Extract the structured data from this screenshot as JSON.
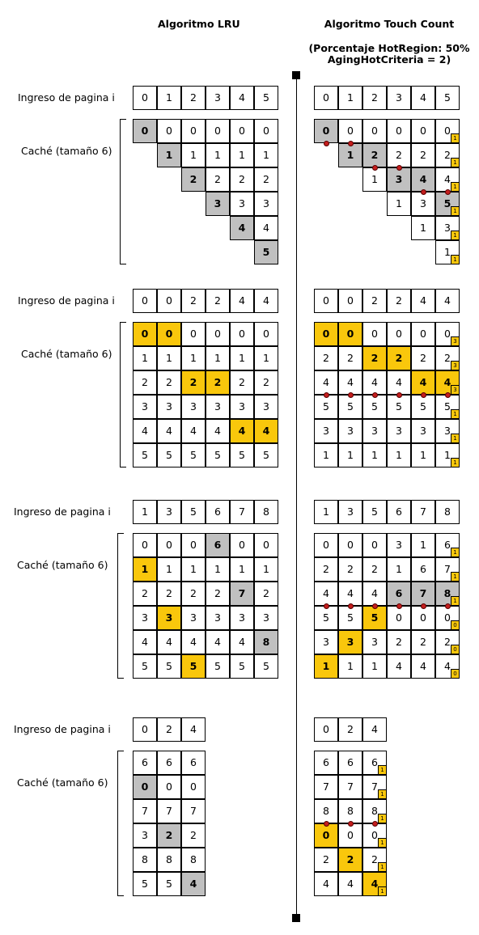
{
  "titles": {
    "lru": "Algoritmo LRU",
    "tc": "Algoritmo Touch Count",
    "tc_sub1": "(Porcentaje HotRegion: 50%",
    "tc_sub2": "AgingHotCriteria = 2)"
  },
  "labels": {
    "ingreso": "Ingreso de pagina i",
    "cache": "Caché (tamaño 6)"
  },
  "colors": {
    "accent": "#f9c70c",
    "hit": "#c0c0c0",
    "marker": "#c41e1e"
  },
  "sections": [
    {
      "input": [
        "0",
        "1",
        "2",
        "3",
        "4",
        "5"
      ],
      "lru": [
        [
          "0g",
          "0",
          "0",
          "0",
          "0",
          "0"
        ],
        [
          "",
          "1g",
          "1",
          "1",
          "1",
          "1"
        ],
        [
          "",
          "",
          "2g",
          "2",
          "2",
          "2"
        ],
        [
          "",
          "",
          "",
          "3g",
          "3",
          "3"
        ],
        [
          "",
          "",
          "",
          "",
          "4g",
          "4"
        ],
        [
          "",
          "",
          "",
          "",
          "",
          "5g"
        ]
      ],
      "tc": [
        [
          "0g",
          "0",
          "0",
          "0",
          "0",
          "0|1"
        ],
        [
          "",
          "1g",
          "2g",
          "2",
          "2",
          "2|1"
        ],
        [
          "",
          "",
          "1",
          "3g",
          "4g",
          "4|1"
        ],
        [
          "",
          "",
          "",
          "1",
          "3",
          "5g|1"
        ],
        [
          "",
          "",
          "",
          "",
          "1",
          "3|1"
        ],
        [
          "",
          "",
          "",
          "",
          "",
          "1|1"
        ]
      ],
      "dots": [
        [
          0,
          0
        ],
        [
          0,
          1
        ],
        [
          1,
          2
        ],
        [
          1,
          3
        ],
        [
          2,
          4
        ],
        [
          2,
          5
        ]
      ]
    },
    {
      "input": [
        "0",
        "0",
        "2",
        "2",
        "4",
        "4"
      ],
      "lru": [
        [
          "0y",
          "0y",
          "0",
          "0",
          "0",
          "0"
        ],
        [
          "1",
          "1",
          "1",
          "1",
          "1",
          "1"
        ],
        [
          "2",
          "2",
          "2y",
          "2y",
          "2",
          "2"
        ],
        [
          "3",
          "3",
          "3",
          "3",
          "3",
          "3"
        ],
        [
          "4",
          "4",
          "4",
          "4",
          "4y",
          "4y"
        ],
        [
          "5",
          "5",
          "5",
          "5",
          "5",
          "5"
        ]
      ],
      "tc": [
        [
          "0y",
          "0y",
          "0",
          "0",
          "0",
          "0|3"
        ],
        [
          "2",
          "2",
          "2y",
          "2y",
          "2",
          "2|3"
        ],
        [
          "4",
          "4",
          "4",
          "4",
          "4y",
          "4y|3"
        ],
        [
          "5",
          "5",
          "5",
          "5",
          "5",
          "5|1"
        ],
        [
          "3",
          "3",
          "3",
          "3",
          "3",
          "3|1"
        ],
        [
          "1",
          "1",
          "1",
          "1",
          "1",
          "1|1"
        ]
      ],
      "dots": [
        [
          2,
          0
        ],
        [
          2,
          1
        ],
        [
          2,
          2
        ],
        [
          2,
          3
        ],
        [
          2,
          4
        ],
        [
          2,
          5
        ]
      ]
    },
    {
      "input": [
        "1",
        "3",
        "5",
        "6",
        "7",
        "8"
      ],
      "lru": [
        [
          "0",
          "0",
          "0",
          "6g",
          "0",
          "0"
        ],
        [
          "1y",
          "1",
          "1",
          "1",
          "1",
          "1"
        ],
        [
          "2",
          "2",
          "2",
          "2",
          "7g",
          "2"
        ],
        [
          "3",
          "3y",
          "3",
          "3",
          "3",
          "3"
        ],
        [
          "4",
          "4",
          "4",
          "4",
          "4",
          "8g"
        ],
        [
          "5",
          "5",
          "5y",
          "5",
          "5",
          "5"
        ]
      ],
      "tc": [
        [
          "0",
          "0",
          "0",
          "3",
          "1",
          "6|1"
        ],
        [
          "2",
          "2",
          "2",
          "1",
          "6",
          "7|1"
        ],
        [
          "4",
          "4",
          "4",
          "6g",
          "7g",
          "8g|1"
        ],
        [
          "5",
          "5",
          "5y",
          "0",
          "0",
          "0|0"
        ],
        [
          "3",
          "3y",
          "3",
          "2",
          "2",
          "2|0"
        ],
        [
          "1y",
          "1",
          "1",
          "4",
          "4",
          "4|0"
        ]
      ],
      "dots": [
        [
          2,
          0
        ],
        [
          2,
          1
        ],
        [
          2,
          2
        ],
        [
          2,
          3
        ],
        [
          2,
          4
        ],
        [
          2,
          5
        ]
      ]
    },
    {
      "input": [
        "0",
        "2",
        "4"
      ],
      "lru": [
        [
          "6",
          "6",
          "6"
        ],
        [
          "0g",
          "0",
          "0"
        ],
        [
          "7",
          "7",
          "7"
        ],
        [
          "3",
          "2g",
          "2"
        ],
        [
          "8",
          "8",
          "8"
        ],
        [
          "5",
          "5",
          "4g"
        ]
      ],
      "tc": [
        [
          "6",
          "6",
          "6|1"
        ],
        [
          "7",
          "7",
          "7|1"
        ],
        [
          "8",
          "8",
          "8|1"
        ],
        [
          "0y",
          "0",
          "0|1"
        ],
        [
          "2",
          "2y",
          "2|1"
        ],
        [
          "4",
          "4",
          "4y|1"
        ]
      ],
      "dots": [
        [
          2,
          0
        ],
        [
          2,
          1
        ],
        [
          2,
          2
        ]
      ]
    }
  ]
}
